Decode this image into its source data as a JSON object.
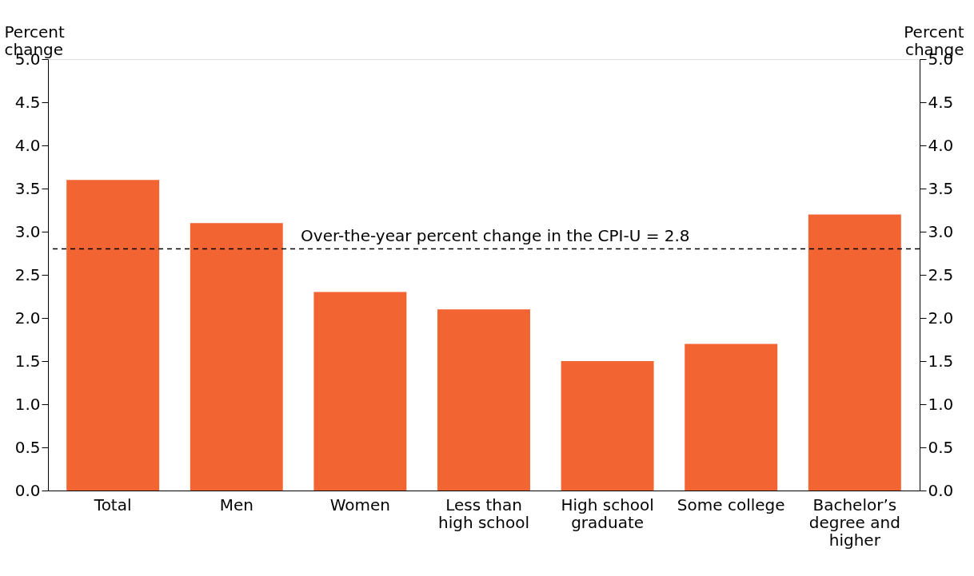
{
  "chart_data": {
    "type": "bar",
    "categories": [
      "Total",
      "Men",
      "Women",
      "Less than\nhigh school",
      "High school\ngraduate",
      "Some college",
      "Bachelor’s\ndegree and\nhigher"
    ],
    "values": [
      3.6,
      3.1,
      2.3,
      2.1,
      1.5,
      1.7,
      3.2
    ],
    "color": "#f26532",
    "ylabel": "Percent change",
    "y2label": "Percent change",
    "ylim": [
      0,
      5
    ],
    "yticks": [
      {
        "value": 0,
        "label": "0.0"
      },
      {
        "value": 0.5,
        "label": "0.5"
      },
      {
        "value": 1,
        "label": "1.0"
      },
      {
        "value": 1.5,
        "label": "1.5"
      },
      {
        "value": 2,
        "label": "2.0"
      },
      {
        "value": 2.5,
        "label": "2.5"
      },
      {
        "value": 3,
        "label": "3.0"
      },
      {
        "value": 3.5,
        "label": "3.5"
      },
      {
        "value": 4,
        "label": "4.0"
      },
      {
        "value": 4.5,
        "label": "4.5"
      },
      {
        "value": 5,
        "label": "5.0"
      }
    ],
    "y2lim": [
      0,
      5
    ],
    "y2ticks": [
      {
        "value": 0,
        "label": "0.0"
      },
      {
        "value": 0.5,
        "label": "0.5"
      },
      {
        "value": 1,
        "label": "1.0"
      },
      {
        "value": 1.5,
        "label": "1.5"
      },
      {
        "value": 2,
        "label": "2.0"
      },
      {
        "value": 2.5,
        "label": "2.5"
      },
      {
        "value": 3,
        "label": "3.0"
      },
      {
        "value": 3.5,
        "label": "3.5"
      },
      {
        "value": 4,
        "label": "4.0"
      },
      {
        "value": 4.5,
        "label": "4.5"
      },
      {
        "value": 5,
        "label": "5.0"
      }
    ],
    "ref_lines": [
      {
        "axis": "y",
        "value": 2.8,
        "label": "Over-the-year percent change in the CPI-U = 2.8",
        "color": "#000000",
        "line_style": "dashed"
      }
    ],
    "grid": false
  }
}
